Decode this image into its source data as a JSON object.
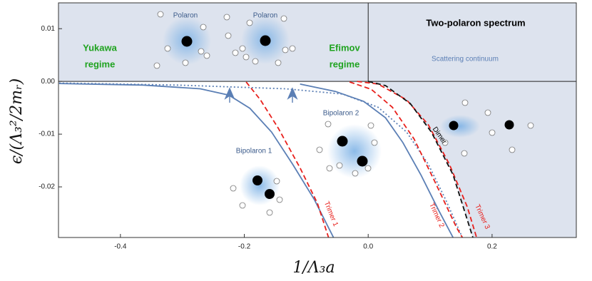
{
  "chart_data": {
    "type": "line",
    "xlabel": "1/Λ₃a",
    "ylabel": "ϵ/(Λ₃²/2mᵣ)",
    "xlim": [
      -0.5,
      0.336
    ],
    "ylim": [
      -0.0296,
      0.0149
    ],
    "xticks": [
      -0.4,
      -0.2,
      {
        "value": 0,
        "label": "0.0"
      },
      0.2
    ],
    "yticks": [
      0.01,
      {
        "value": 0,
        "label": "0.00"
      },
      -0.01,
      -0.02
    ],
    "shade": "#dde3ee",
    "annotations": [
      "Polaron",
      "Polaron",
      "Yukawa",
      "regime",
      "Efimov",
      "regime",
      "Two-polaron spectrum",
      "Scattering continuum",
      "Bipolaron 1",
      "Bipolaron 2",
      "Trimer 1",
      "Trimer 2",
      "Trimer 3",
      "Dimer"
    ],
    "series": [
      {
        "color": "#5b7fb5",
        "style": "solid",
        "x": [
          -0.499,
          -0.363,
          -0.271,
          -0.225,
          -0.191,
          -0.156,
          -0.122,
          -0.087,
          -0.056
        ],
        "values": [
          -0.0004,
          -0.0007,
          -0.0014,
          -0.0026,
          -0.0051,
          -0.0096,
          -0.0157,
          -0.0224,
          -0.0296
        ]
      },
      {
        "color": "#e8201c",
        "style": "dashed",
        "x": [
          -0.197,
          -0.174,
          -0.145,
          -0.11,
          -0.082,
          -0.064
        ],
        "values": [
          -0.0001,
          -0.0035,
          -0.0089,
          -0.0164,
          -0.0231,
          -0.0296
        ]
      },
      {
        "color": "#5b7fb5",
        "style": "solid",
        "x": [
          -0.11,
          -0.053,
          -0.007,
          0.028,
          0.056,
          0.085,
          0.114,
          0.137
        ],
        "values": [
          -0.0005,
          -0.0019,
          -0.0038,
          -0.0069,
          -0.0116,
          -0.0177,
          -0.0245,
          -0.0296
        ]
      },
      {
        "color": "#5b7fb5",
        "style": "dotted",
        "x": [
          -0.499,
          -0.306,
          -0.133,
          -0.041,
          0.016,
          0.062,
          0.097,
          0.125,
          0.152
        ],
        "values": [
          -0.0003,
          -0.0007,
          -0.0014,
          -0.0024,
          -0.0049,
          -0.0096,
          -0.0157,
          -0.0224,
          -0.0296
        ]
      },
      {
        "color": "#e8201c",
        "style": "dashed",
        "x": [
          -0.03,
          0.005,
          0.039,
          0.074,
          0.108,
          0.143,
          0.152
        ],
        "values": [
          -0.0001,
          -0.0015,
          -0.0049,
          -0.0109,
          -0.0191,
          -0.0278,
          -0.0296
        ]
      },
      {
        "color": "#e8201c",
        "style": "dashed",
        "x": [
          -0.018,
          0.016,
          0.062,
          0.097,
          0.131,
          0.16,
          0.175
        ],
        "values": [
          0,
          -0.0005,
          -0.0035,
          -0.0082,
          -0.0157,
          -0.0238,
          -0.0296
        ]
      },
      {
        "color": "#111111",
        "style": "dashed",
        "fill": true,
        "x": [
          0,
          0.028,
          0.068,
          0.102,
          0.137,
          0.169
        ],
        "values": [
          0,
          -0.0008,
          -0.0042,
          -0.0096,
          -0.0177,
          -0.0296
        ]
      }
    ]
  }
}
